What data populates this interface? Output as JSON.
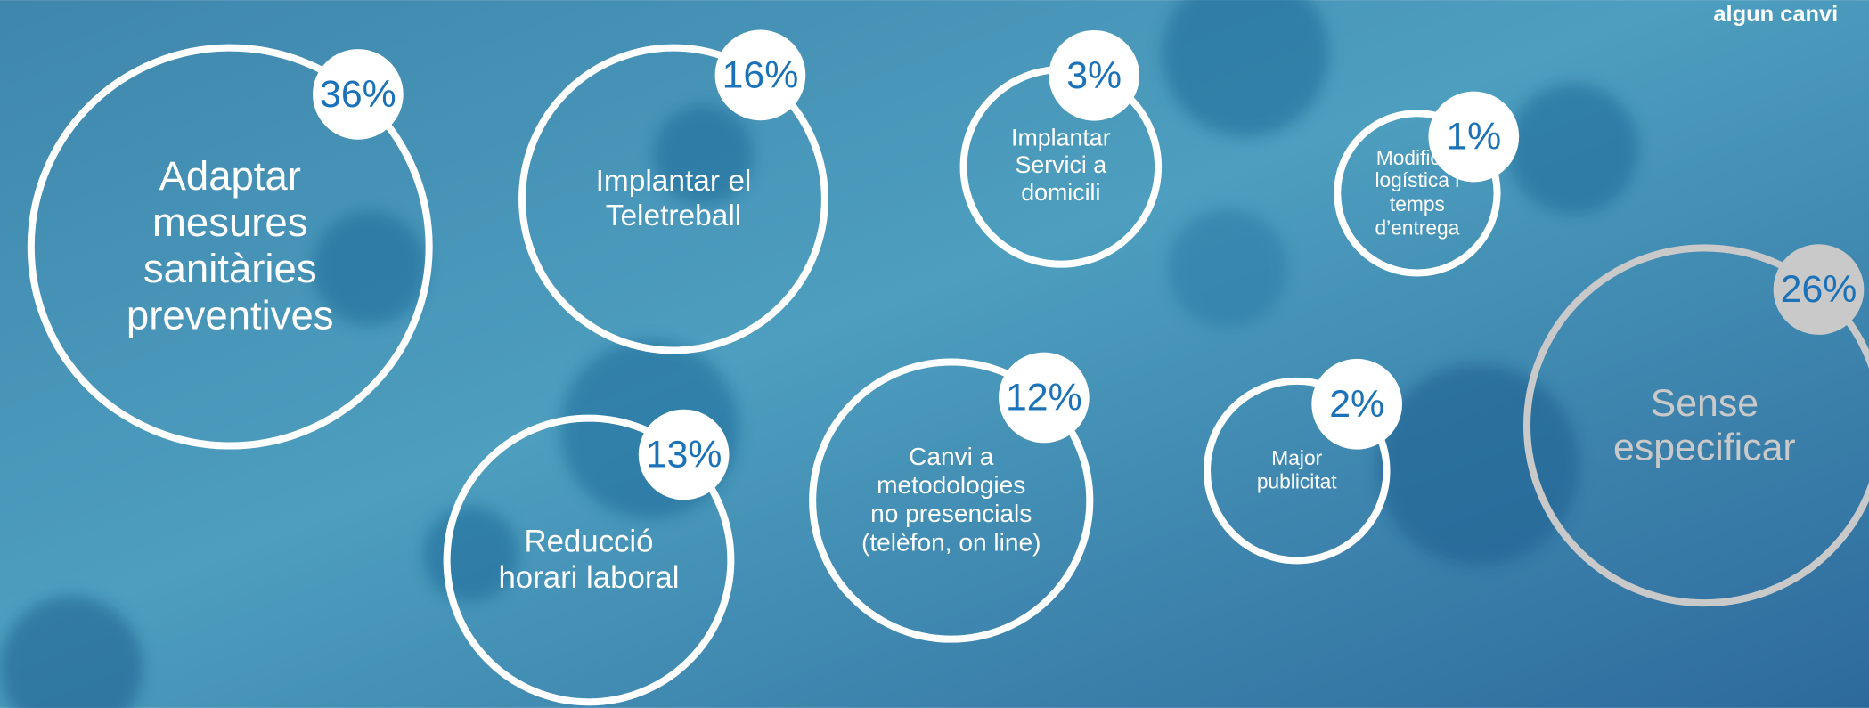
{
  "chart_data": {
    "type": "bubble",
    "title": "algun canvi",
    "categories": [
      "Adaptar mesures sanitàries preventives",
      "Implantar el Teletreball",
      "Implantar Servici a domicili",
      "Modificar logística i temps d’entrega",
      "Sense especificar",
      "Canvi a metodologies no presencials (telèfon, on line)",
      "Reducció horari laboral",
      "Major publicitat"
    ],
    "values": [
      36,
      16,
      3,
      1,
      26,
      12,
      13,
      2
    ],
    "value_labels": [
      "36%",
      "16%",
      "3%",
      "1%",
      "26%",
      "12%",
      "13%",
      "2%"
    ],
    "colors": [
      "#ffffff",
      "#ffffff",
      "#ffffff",
      "#ffffff",
      "#c9c9c9",
      "#ffffff",
      "#ffffff",
      "#ffffff"
    ]
  }
}
